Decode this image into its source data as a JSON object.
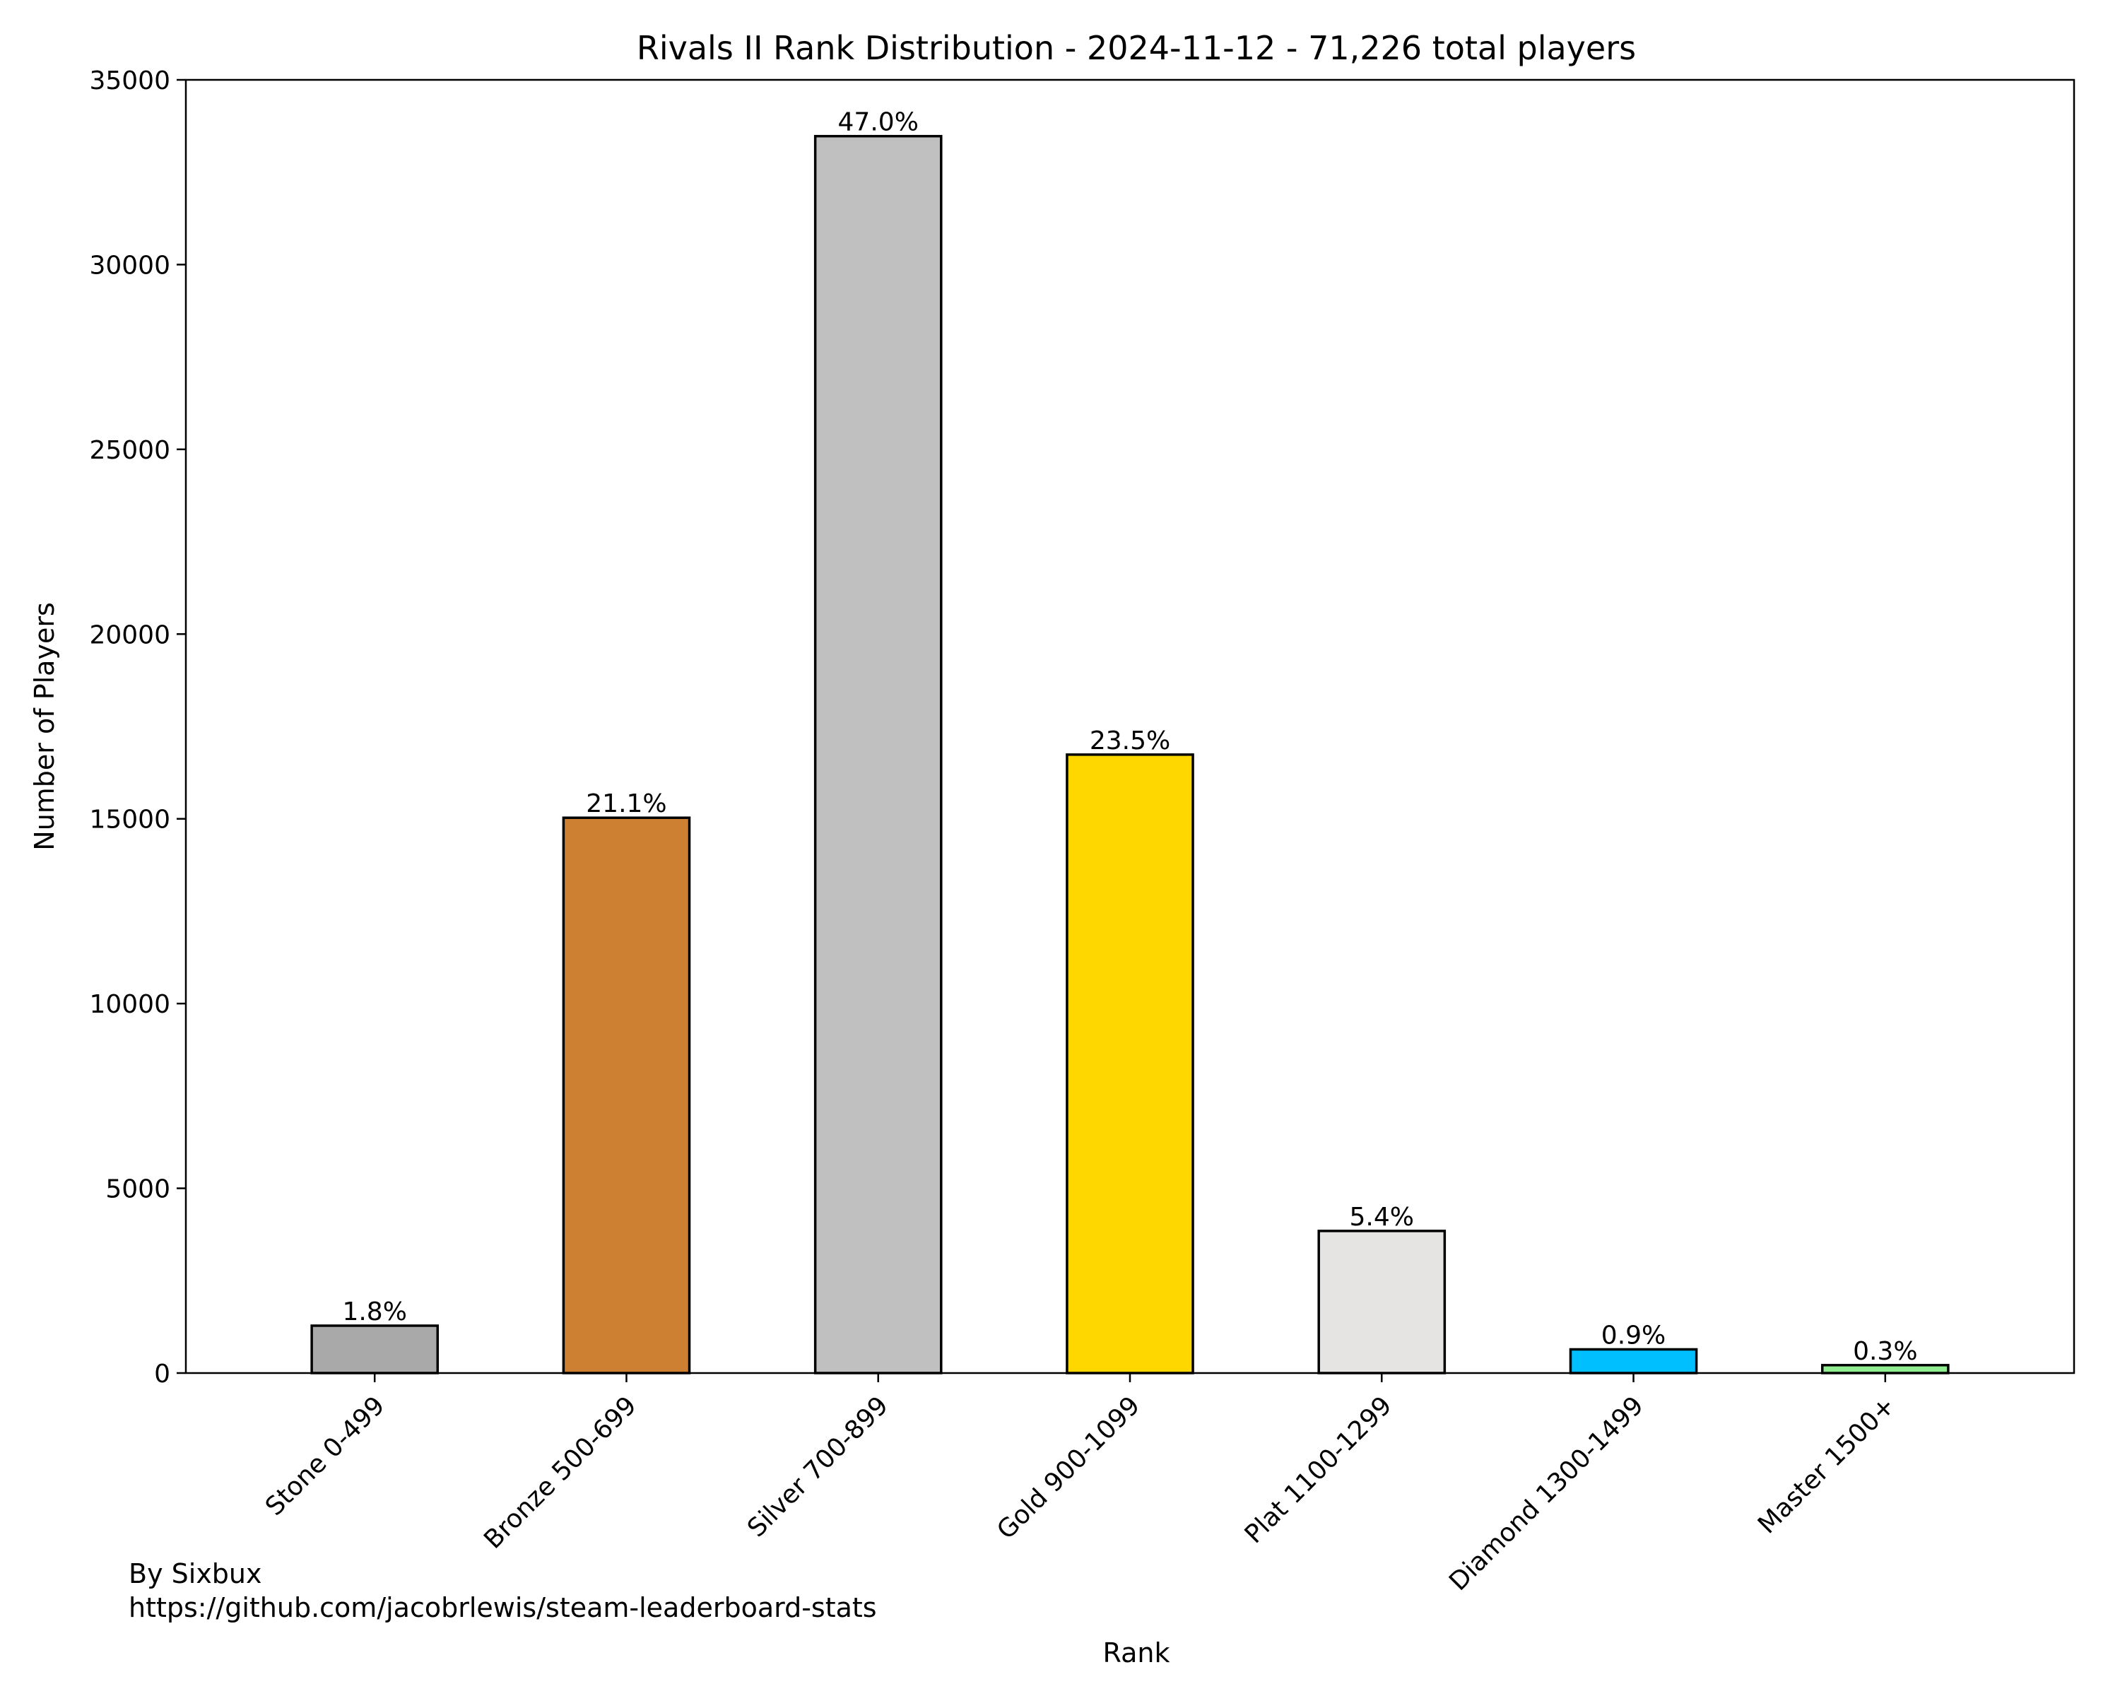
{
  "chart_data": {
    "type": "bar",
    "title": "Rivals II Rank Distribution - 2024-11-12 - 71,226 total players",
    "xlabel": "Rank",
    "ylabel": "Number of Players",
    "ylim": [
      0,
      35000
    ],
    "yticks": [
      "0",
      "5000",
      "10000",
      "15000",
      "20000",
      "25000",
      "30000",
      "35000"
    ],
    "categories": [
      "Stone 0-499",
      "Bronze 500-699",
      "Silver 700-899",
      "Gold 900-1099",
      "Plat 1100-1299",
      "Diamond 1300-1499",
      "Master 1500+"
    ],
    "values": [
      1282,
      15029,
      33476,
      16738,
      3846,
      641,
      214
    ],
    "value_labels": [
      "1.8%",
      "21.1%",
      "47.0%",
      "23.5%",
      "5.4%",
      "0.9%",
      "0.3%"
    ],
    "colors": [
      "#a9a9a9",
      "#cd7f32",
      "#c0c0c0",
      "#ffd700",
      "#e5e4e2",
      "#00bfff",
      "#90ee90"
    ],
    "grid": false,
    "legend": "none"
  },
  "credit": {
    "line1": "By Sixbux",
    "line2": "https://github.com/jacobrlewis/steam-leaderboard-stats"
  }
}
